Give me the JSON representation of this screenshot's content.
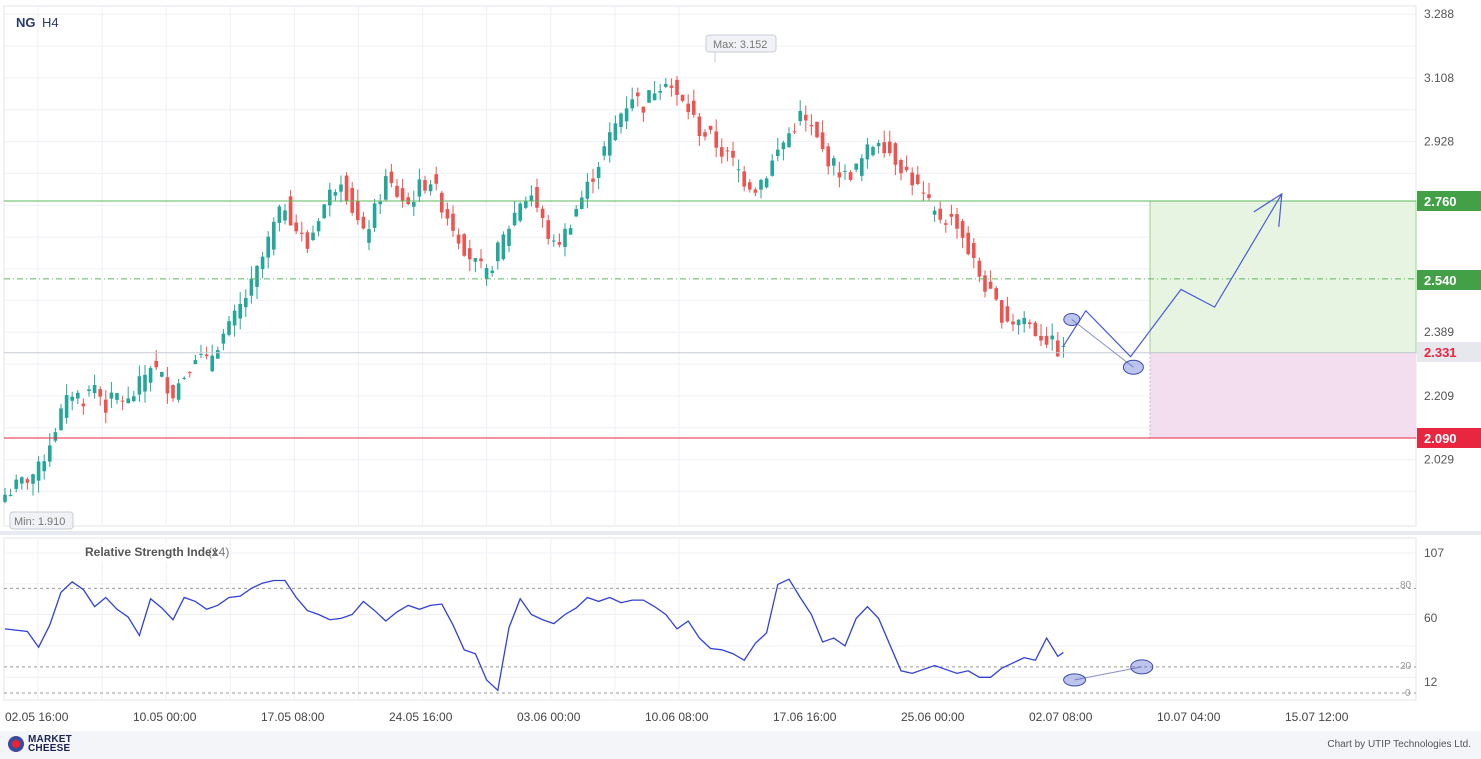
{
  "header": {
    "symbol": "NG",
    "timeframe": "H4"
  },
  "colors": {
    "up": "#26a69a",
    "down": "#ef5350",
    "rsi_line": "#3340d6",
    "target_line": "#5cb85c",
    "stop_line": "#e8263f",
    "target_zone": "#e6f4e1",
    "stop_zone": "#f3def0",
    "current_price": "#e8263f"
  },
  "main_axis": {
    "labels": [
      "3.288",
      "3.108",
      "2.928",
      "2.389",
      "2.209",
      "2.029"
    ],
    "values": [
      3.288,
      3.108,
      2.928,
      2.389,
      2.209,
      2.029
    ]
  },
  "levels": {
    "target": "2.760",
    "mid": "2.540",
    "current": "2.331",
    "stop": "2.090"
  },
  "annotations": {
    "max_label": "Max: 3.152",
    "min_label": "Min: 1.910"
  },
  "rsi_panel": {
    "title": "Relative Strength Index",
    "period": "(14)",
    "axis_labels": [
      "107",
      "60",
      "12"
    ],
    "axis_values": [
      107,
      60,
      12
    ],
    "guide_labels": [
      "80",
      "20",
      "0"
    ],
    "guide_values": [
      80,
      20,
      0
    ]
  },
  "x_axis": {
    "labels": [
      "02.05 16:00",
      "10.05 00:00",
      "17.05 08:00",
      "24.05 16:00",
      "03.06 00:00",
      "10.06 08:00",
      "17.06 16:00",
      "25.06 00:00",
      "02.07 08:00",
      "10.07 04:00",
      "15.07 12:00"
    ]
  },
  "footer": {
    "brand_line1": "MARKET",
    "brand_line2": "CHEESE",
    "credit": "Chart by UTIP Technologies Ltd."
  },
  "chart_data": [
    {
      "type": "candlestick",
      "title": "NG H4",
      "x_labels": [
        "02.05 16:00",
        "10.05 00:00",
        "17.05 08:00",
        "24.05 16:00",
        "03.06 00:00",
        "10.06 08:00",
        "17.06 16:00",
        "25.06 00:00",
        "02.07 08:00",
        "10.07 04:00",
        "15.07 12:00"
      ],
      "ylim": [
        1.86,
        3.3
      ],
      "close_path": [
        [
          0,
          1.93
        ],
        [
          6,
          2.0
        ],
        [
          8,
          2.08
        ],
        [
          10,
          2.16
        ],
        [
          12,
          2.22
        ],
        [
          14,
          2.2
        ],
        [
          16,
          2.24
        ],
        [
          18,
          2.18
        ],
        [
          20,
          2.21
        ],
        [
          22,
          2.19
        ],
        [
          24,
          2.24
        ],
        [
          26,
          2.3
        ],
        [
          28,
          2.26
        ],
        [
          30,
          2.22
        ],
        [
          32,
          2.27
        ],
        [
          34,
          2.33
        ],
        [
          36,
          2.3
        ],
        [
          38,
          2.36
        ],
        [
          40,
          2.4
        ],
        [
          42,
          2.46
        ],
        [
          44,
          2.52
        ],
        [
          46,
          2.6
        ],
        [
          48,
          2.69
        ],
        [
          50,
          2.75
        ],
        [
          52,
          2.68
        ],
        [
          54,
          2.63
        ],
        [
          56,
          2.72
        ],
        [
          58,
          2.78
        ],
        [
          60,
          2.83
        ],
        [
          62,
          2.74
        ],
        [
          64,
          2.66
        ],
        [
          66,
          2.73
        ],
        [
          68,
          2.82
        ],
        [
          70,
          2.78
        ],
        [
          72,
          2.75
        ],
        [
          74,
          2.8
        ],
        [
          76,
          2.82
        ],
        [
          78,
          2.75
        ],
        [
          80,
          2.69
        ],
        [
          82,
          2.63
        ],
        [
          84,
          2.58
        ],
        [
          86,
          2.55
        ],
        [
          88,
          2.62
        ],
        [
          90,
          2.69
        ],
        [
          92,
          2.76
        ],
        [
          94,
          2.78
        ],
        [
          96,
          2.7
        ],
        [
          98,
          2.63
        ],
        [
          100,
          2.67
        ],
        [
          102,
          2.74
        ],
        [
          104,
          2.8
        ],
        [
          106,
          2.87
        ],
        [
          108,
          2.94
        ],
        [
          110,
          3.01
        ],
        [
          112,
          3.06
        ],
        [
          114,
          3.03
        ],
        [
          116,
          3.08
        ],
        [
          118,
          3.11
        ],
        [
          120,
          3.05
        ],
        [
          122,
          3.02
        ],
        [
          124,
          2.96
        ],
        [
          126,
          2.94
        ],
        [
          128,
          2.9
        ],
        [
          130,
          2.87
        ],
        [
          132,
          2.82
        ],
        [
          134,
          2.8
        ],
        [
          136,
          2.84
        ],
        [
          138,
          2.9
        ],
        [
          140,
          2.95
        ],
        [
          142,
          3.0
        ],
        [
          144,
          2.96
        ],
        [
          146,
          2.9
        ],
        [
          148,
          2.86
        ],
        [
          150,
          2.83
        ],
        [
          152,
          2.85
        ],
        [
          154,
          2.9
        ],
        [
          156,
          2.94
        ],
        [
          158,
          2.9
        ],
        [
          160,
          2.86
        ],
        [
          162,
          2.82
        ],
        [
          164,
          2.77
        ],
        [
          166,
          2.72
        ],
        [
          168,
          2.71
        ],
        [
          170,
          2.7
        ],
        [
          172,
          2.62
        ],
        [
          174,
          2.55
        ],
        [
          176,
          2.49
        ],
        [
          178,
          2.44
        ],
        [
          180,
          2.42
        ],
        [
          182,
          2.43
        ],
        [
          184,
          2.39
        ],
        [
          186,
          2.37
        ],
        [
          188,
          2.34
        ],
        [
          189,
          2.331
        ]
      ],
      "signal_forecast_path": [
        [
          189,
          2.35
        ],
        [
          193,
          2.45
        ],
        [
          201,
          2.32
        ],
        [
          210,
          2.51
        ],
        [
          216,
          2.46
        ],
        [
          228,
          2.78
        ]
      ],
      "last_price": 2.331,
      "max": 3.152,
      "min": 1.91,
      "target": 2.76,
      "mid": 2.54,
      "stop": 2.09
    },
    {
      "type": "line",
      "title": "Relative Strength Index (14)",
      "ylim": [
        0,
        107
      ],
      "series": [
        {
          "name": "Relative Strength Index (14)",
          "points": [
            [
              0,
              49
            ],
            [
              4,
              47
            ],
            [
              6,
              35
            ],
            [
              8,
              52
            ],
            [
              10,
              77
            ],
            [
              12,
              85
            ],
            [
              14,
              79
            ],
            [
              16,
              66
            ],
            [
              18,
              73
            ],
            [
              20,
              64
            ],
            [
              22,
              58
            ],
            [
              24,
              44
            ],
            [
              26,
              72
            ],
            [
              28,
              65
            ],
            [
              30,
              56
            ],
            [
              32,
              73
            ],
            [
              34,
              70
            ],
            [
              36,
              64
            ],
            [
              38,
              67
            ],
            [
              40,
              73
            ],
            [
              42,
              74
            ],
            [
              44,
              80
            ],
            [
              46,
              84
            ],
            [
              48,
              86
            ],
            [
              50,
              86
            ],
            [
              52,
              73
            ],
            [
              54,
              63
            ],
            [
              56,
              60
            ],
            [
              58,
              56
            ],
            [
              60,
              57
            ],
            [
              62,
              60
            ],
            [
              64,
              70
            ],
            [
              66,
              63
            ],
            [
              68,
              55
            ],
            [
              70,
              62
            ],
            [
              72,
              67
            ],
            [
              74,
              64
            ],
            [
              76,
              67
            ],
            [
              78,
              68
            ],
            [
              80,
              52
            ],
            [
              82,
              33
            ],
            [
              84,
              30
            ],
            [
              86,
              10
            ],
            [
              88,
              2
            ],
            [
              90,
              50
            ],
            [
              92,
              72
            ],
            [
              94,
              60
            ],
            [
              96,
              56
            ],
            [
              98,
              53
            ],
            [
              100,
              60
            ],
            [
              102,
              65
            ],
            [
              104,
              73
            ],
            [
              106,
              70
            ],
            [
              108,
              73
            ],
            [
              110,
              69
            ],
            [
              112,
              71
            ],
            [
              114,
              71
            ],
            [
              116,
              66
            ],
            [
              118,
              60
            ],
            [
              120,
              49
            ],
            [
              122,
              55
            ],
            [
              124,
              42
            ],
            [
              126,
              34
            ],
            [
              128,
              33
            ],
            [
              130,
              30
            ],
            [
              132,
              25
            ],
            [
              134,
              38
            ],
            [
              136,
              46
            ],
            [
              138,
              83
            ],
            [
              140,
              87
            ],
            [
              142,
              73
            ],
            [
              144,
              60
            ],
            [
              146,
              39
            ],
            [
              148,
              42
            ],
            [
              150,
              36
            ],
            [
              152,
              57
            ],
            [
              154,
              66
            ],
            [
              156,
              57
            ],
            [
              158,
              37
            ],
            [
              160,
              17
            ],
            [
              162,
              15
            ],
            [
              164,
              18
            ],
            [
              166,
              21
            ],
            [
              168,
              18
            ],
            [
              170,
              15
            ],
            [
              172,
              17
            ],
            [
              174,
              12
            ],
            [
              176,
              12
            ],
            [
              178,
              19
            ],
            [
              180,
              23
            ],
            [
              182,
              27
            ],
            [
              184,
              25
            ],
            [
              186,
              42
            ],
            [
              188,
              28
            ],
            [
              189,
              31
            ]
          ]
        }
      ],
      "guides": [
        80,
        20,
        0
      ]
    }
  ]
}
